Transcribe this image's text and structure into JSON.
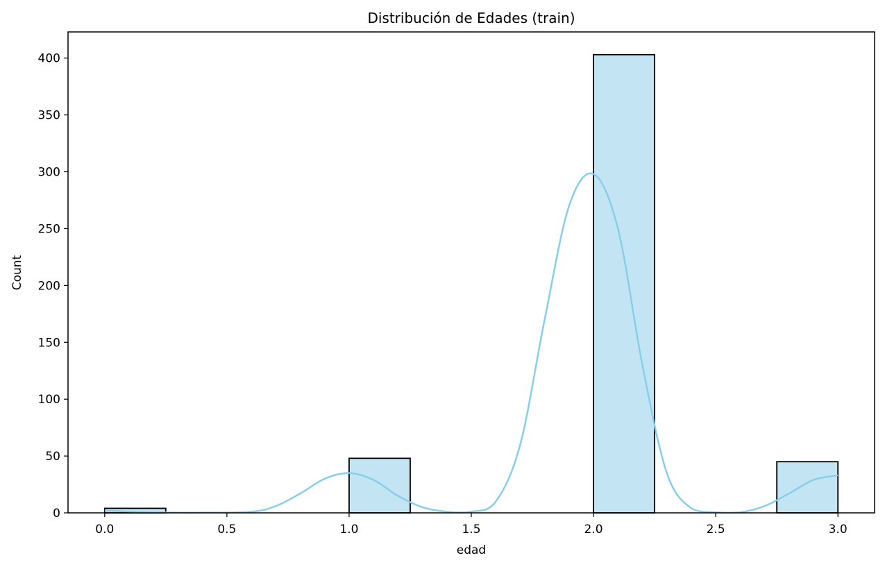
{
  "chart_data": {
    "type": "bar",
    "title": "Distribución de Edades (train)",
    "xlabel": "edad",
    "ylabel": "Count",
    "xlim": [
      -0.15,
      3.15
    ],
    "ylim": [
      0,
      423
    ],
    "xticks": [
      0.0,
      0.5,
      1.0,
      1.5,
      2.0,
      2.5,
      3.0
    ],
    "xtick_labels": [
      "0.0",
      "0.5",
      "1.0",
      "1.5",
      "2.0",
      "2.5",
      "3.0"
    ],
    "yticks": [
      0,
      50,
      100,
      150,
      200,
      250,
      300,
      350,
      400
    ],
    "ytick_labels": [
      "0",
      "50",
      "100",
      "150",
      "200",
      "250",
      "300",
      "350",
      "400"
    ],
    "bins": [
      {
        "x0": 0.0,
        "x1": 0.25,
        "count": 4
      },
      {
        "x0": 1.0,
        "x1": 1.25,
        "count": 48
      },
      {
        "x0": 2.0,
        "x1": 2.25,
        "count": 403
      },
      {
        "x0": 2.75,
        "x1": 3.0,
        "count": 45
      }
    ],
    "kde": {
      "x": [
        0.0,
        0.2,
        0.4,
        0.6,
        0.7,
        0.8,
        0.9,
        1.0,
        1.1,
        1.2,
        1.3,
        1.4,
        1.5,
        1.6,
        1.7,
        1.8,
        1.9,
        2.0,
        2.1,
        2.2,
        2.3,
        2.4,
        2.5,
        2.6,
        2.7,
        2.8,
        2.9,
        3.0
      ],
      "y": [
        2,
        0.5,
        0.3,
        1,
        6,
        17,
        30,
        35,
        29,
        15,
        5,
        1,
        1,
        10,
        60,
        170,
        270,
        298,
        250,
        130,
        35,
        4,
        0.5,
        0.5,
        6,
        17,
        29,
        33
      ]
    },
    "grid": false,
    "legend": false,
    "colors": {
      "bar_fill": "#c3e5f3",
      "bar_edge": "#000000",
      "kde_line": "#87ceeb"
    }
  }
}
